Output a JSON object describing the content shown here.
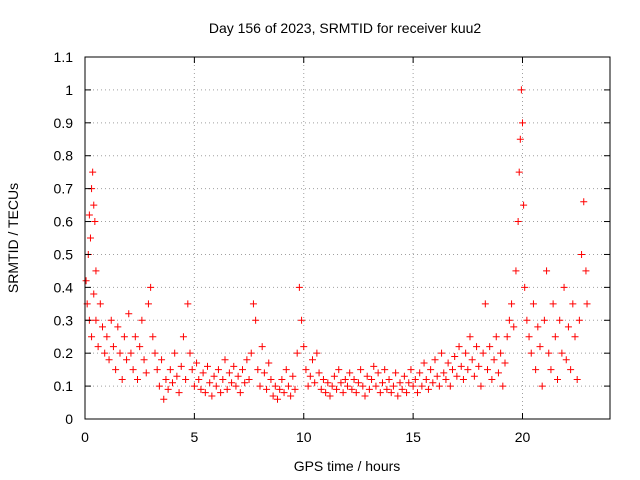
{
  "chart_data": {
    "type": "scatter",
    "title": "Day 156 of 2023, SRMTID for receiver kuu2",
    "xlabel": "GPS time / hours",
    "ylabel": "SRMTID / TECUs",
    "xlim": [
      0,
      24
    ],
    "ylim": [
      0,
      1.1
    ],
    "xticks": [
      0,
      5,
      10,
      15,
      20
    ],
    "yticks": [
      0,
      0.1,
      0.2,
      0.3,
      0.4,
      0.5,
      0.6,
      0.7,
      0.8,
      0.9,
      1,
      1.1
    ],
    "ytick_labels": [
      "0",
      "0.1",
      "0.2",
      "0.3",
      "0.4",
      "0.5",
      "0.6",
      "0.7",
      "0.8",
      "0.9",
      "1",
      "1.1"
    ],
    "grid": true,
    "marker": "+",
    "marker_color": "#ff0000",
    "series": [
      {
        "name": "SRMTID",
        "points": [
          [
            0.05,
            0.42
          ],
          [
            0.1,
            0.35
          ],
          [
            0.15,
            0.5
          ],
          [
            0.2,
            0.62
          ],
          [
            0.25,
            0.55
          ],
          [
            0.3,
            0.7
          ],
          [
            0.35,
            0.75
          ],
          [
            0.4,
            0.65
          ],
          [
            0.45,
            0.6
          ],
          [
            0.5,
            0.45
          ],
          [
            0.2,
            0.3
          ],
          [
            0.3,
            0.25
          ],
          [
            0.4,
            0.38
          ],
          [
            0.5,
            0.3
          ],
          [
            0.6,
            0.22
          ],
          [
            0.7,
            0.35
          ],
          [
            0.8,
            0.28
          ],
          [
            0.9,
            0.2
          ],
          [
            1.0,
            0.25
          ],
          [
            1.1,
            0.18
          ],
          [
            1.2,
            0.3
          ],
          [
            1.3,
            0.22
          ],
          [
            1.4,
            0.15
          ],
          [
            1.5,
            0.28
          ],
          [
            1.6,
            0.2
          ],
          [
            1.7,
            0.12
          ],
          [
            1.8,
            0.25
          ],
          [
            1.9,
            0.18
          ],
          [
            2.0,
            0.32
          ],
          [
            2.1,
            0.2
          ],
          [
            2.2,
            0.15
          ],
          [
            2.3,
            0.25
          ],
          [
            2.4,
            0.12
          ],
          [
            2.5,
            0.22
          ],
          [
            2.6,
            0.3
          ],
          [
            2.7,
            0.18
          ],
          [
            2.8,
            0.14
          ],
          [
            2.9,
            0.35
          ],
          [
            3.0,
            0.4
          ],
          [
            3.1,
            0.25
          ],
          [
            3.2,
            0.2
          ],
          [
            3.3,
            0.15
          ],
          [
            3.4,
            0.1
          ],
          [
            3.5,
            0.18
          ],
          [
            3.6,
            0.06
          ],
          [
            3.7,
            0.12
          ],
          [
            3.8,
            0.09
          ],
          [
            3.9,
            0.15
          ],
          [
            4.0,
            0.11
          ],
          [
            4.1,
            0.2
          ],
          [
            4.2,
            0.13
          ],
          [
            4.3,
            0.08
          ],
          [
            4.4,
            0.16
          ],
          [
            4.5,
            0.25
          ],
          [
            4.6,
            0.12
          ],
          [
            4.7,
            0.35
          ],
          [
            4.8,
            0.2
          ],
          [
            4.9,
            0.15
          ],
          [
            5.0,
            0.1
          ],
          [
            5.1,
            0.17
          ],
          [
            5.2,
            0.12
          ],
          [
            5.3,
            0.09
          ],
          [
            5.4,
            0.14
          ],
          [
            5.5,
            0.08
          ],
          [
            5.6,
            0.16
          ],
          [
            5.7,
            0.11
          ],
          [
            5.8,
            0.07
          ],
          [
            5.9,
            0.13
          ],
          [
            6.0,
            0.1
          ],
          [
            6.1,
            0.15
          ],
          [
            6.2,
            0.08
          ],
          [
            6.3,
            0.12
          ],
          [
            6.4,
            0.18
          ],
          [
            6.5,
            0.09
          ],
          [
            6.6,
            0.14
          ],
          [
            6.7,
            0.11
          ],
          [
            6.8,
            0.16
          ],
          [
            6.9,
            0.1
          ],
          [
            7.0,
            0.13
          ],
          [
            7.1,
            0.08
          ],
          [
            7.2,
            0.15
          ],
          [
            7.3,
            0.11
          ],
          [
            7.4,
            0.18
          ],
          [
            7.5,
            0.12
          ],
          [
            7.6,
            0.2
          ],
          [
            7.7,
            0.35
          ],
          [
            7.8,
            0.3
          ],
          [
            7.9,
            0.15
          ],
          [
            8.0,
            0.1
          ],
          [
            8.1,
            0.22
          ],
          [
            8.2,
            0.14
          ],
          [
            8.3,
            0.09
          ],
          [
            8.4,
            0.17
          ],
          [
            8.5,
            0.12
          ],
          [
            8.6,
            0.07
          ],
          [
            8.7,
            0.1
          ],
          [
            8.8,
            0.06
          ],
          [
            8.9,
            0.09
          ],
          [
            9.0,
            0.12
          ],
          [
            9.1,
            0.08
          ],
          [
            9.2,
            0.15
          ],
          [
            9.3,
            0.1
          ],
          [
            9.4,
            0.07
          ],
          [
            9.5,
            0.13
          ],
          [
            9.6,
            0.09
          ],
          [
            9.7,
            0.2
          ],
          [
            9.8,
            0.4
          ],
          [
            9.9,
            0.3
          ],
          [
            10.0,
            0.22
          ],
          [
            10.1,
            0.15
          ],
          [
            10.2,
            0.1
          ],
          [
            10.3,
            0.13
          ],
          [
            10.4,
            0.18
          ],
          [
            10.5,
            0.11
          ],
          [
            10.6,
            0.2
          ],
          [
            10.7,
            0.14
          ],
          [
            10.8,
            0.09
          ],
          [
            10.9,
            0.12
          ],
          [
            11.0,
            0.08
          ],
          [
            11.1,
            0.11
          ],
          [
            11.2,
            0.07
          ],
          [
            11.3,
            0.1
          ],
          [
            11.4,
            0.13
          ],
          [
            11.5,
            0.09
          ],
          [
            11.6,
            0.15
          ],
          [
            11.7,
            0.11
          ],
          [
            11.8,
            0.08
          ],
          [
            11.9,
            0.12
          ],
          [
            12.0,
            0.1
          ],
          [
            12.1,
            0.14
          ],
          [
            12.2,
            0.09
          ],
          [
            12.3,
            0.12
          ],
          [
            12.4,
            0.08
          ],
          [
            12.5,
            0.11
          ],
          [
            12.6,
            0.15
          ],
          [
            12.7,
            0.1
          ],
          [
            12.8,
            0.07
          ],
          [
            12.9,
            0.13
          ],
          [
            13.0,
            0.09
          ],
          [
            13.1,
            0.12
          ],
          [
            13.2,
            0.16
          ],
          [
            13.3,
            0.1
          ],
          [
            13.4,
            0.14
          ],
          [
            13.5,
            0.08
          ],
          [
            13.6,
            0.11
          ],
          [
            13.7,
            0.15
          ],
          [
            13.8,
            0.09
          ],
          [
            13.9,
            0.12
          ],
          [
            14.0,
            0.08
          ],
          [
            14.1,
            0.1
          ],
          [
            14.2,
            0.14
          ],
          [
            14.3,
            0.07
          ],
          [
            14.4,
            0.11
          ],
          [
            14.5,
            0.09
          ],
          [
            14.6,
            0.13
          ],
          [
            14.7,
            0.08
          ],
          [
            14.8,
            0.11
          ],
          [
            14.9,
            0.15
          ],
          [
            15.0,
            0.1
          ],
          [
            15.1,
            0.12
          ],
          [
            15.2,
            0.08
          ],
          [
            15.3,
            0.14
          ],
          [
            15.4,
            0.1
          ],
          [
            15.5,
            0.17
          ],
          [
            15.6,
            0.12
          ],
          [
            15.7,
            0.09
          ],
          [
            15.8,
            0.15
          ],
          [
            15.9,
            0.11
          ],
          [
            16.0,
            0.18
          ],
          [
            16.1,
            0.13
          ],
          [
            16.2,
            0.1
          ],
          [
            16.3,
            0.2
          ],
          [
            16.4,
            0.14
          ],
          [
            16.5,
            0.12
          ],
          [
            16.6,
            0.17
          ],
          [
            16.7,
            0.1
          ],
          [
            16.8,
            0.15
          ],
          [
            16.9,
            0.19
          ],
          [
            17.0,
            0.13
          ],
          [
            17.1,
            0.22
          ],
          [
            17.2,
            0.16
          ],
          [
            17.3,
            0.12
          ],
          [
            17.4,
            0.2
          ],
          [
            17.5,
            0.15
          ],
          [
            17.6,
            0.25
          ],
          [
            17.7,
            0.18
          ],
          [
            17.8,
            0.13
          ],
          [
            17.9,
            0.22
          ],
          [
            18.0,
            0.16
          ],
          [
            18.1,
            0.1
          ],
          [
            18.2,
            0.2
          ],
          [
            18.3,
            0.35
          ],
          [
            18.4,
            0.15
          ],
          [
            18.5,
            0.22
          ],
          [
            18.6,
            0.12
          ],
          [
            18.7,
            0.18
          ],
          [
            18.8,
            0.25
          ],
          [
            18.9,
            0.14
          ],
          [
            19.0,
            0.2
          ],
          [
            19.1,
            0.1
          ],
          [
            19.2,
            0.17
          ],
          [
            19.3,
            0.25
          ],
          [
            19.4,
            0.3
          ],
          [
            19.5,
            0.35
          ],
          [
            19.6,
            0.28
          ],
          [
            19.7,
            0.45
          ],
          [
            19.8,
            0.6
          ],
          [
            19.85,
            0.75
          ],
          [
            19.9,
            0.85
          ],
          [
            19.95,
            1.0
          ],
          [
            20.0,
            0.9
          ],
          [
            20.05,
            0.65
          ],
          [
            20.1,
            0.4
          ],
          [
            20.2,
            0.3
          ],
          [
            20.3,
            0.25
          ],
          [
            20.4,
            0.2
          ],
          [
            20.5,
            0.35
          ],
          [
            20.6,
            0.15
          ],
          [
            20.7,
            0.28
          ],
          [
            20.8,
            0.22
          ],
          [
            20.9,
            0.1
          ],
          [
            21.0,
            0.3
          ],
          [
            21.1,
            0.45
          ],
          [
            21.2,
            0.2
          ],
          [
            21.3,
            0.15
          ],
          [
            21.4,
            0.35
          ],
          [
            21.5,
            0.25
          ],
          [
            21.6,
            0.12
          ],
          [
            21.7,
            0.3
          ],
          [
            21.8,
            0.2
          ],
          [
            21.9,
            0.4
          ],
          [
            22.0,
            0.18
          ],
          [
            22.1,
            0.28
          ],
          [
            22.2,
            0.15
          ],
          [
            22.3,
            0.35
          ],
          [
            22.4,
            0.25
          ],
          [
            22.5,
            0.12
          ],
          [
            22.6,
            0.3
          ],
          [
            22.7,
            0.5
          ],
          [
            22.8,
            0.66
          ],
          [
            22.9,
            0.45
          ],
          [
            22.95,
            0.35
          ]
        ]
      }
    ]
  }
}
